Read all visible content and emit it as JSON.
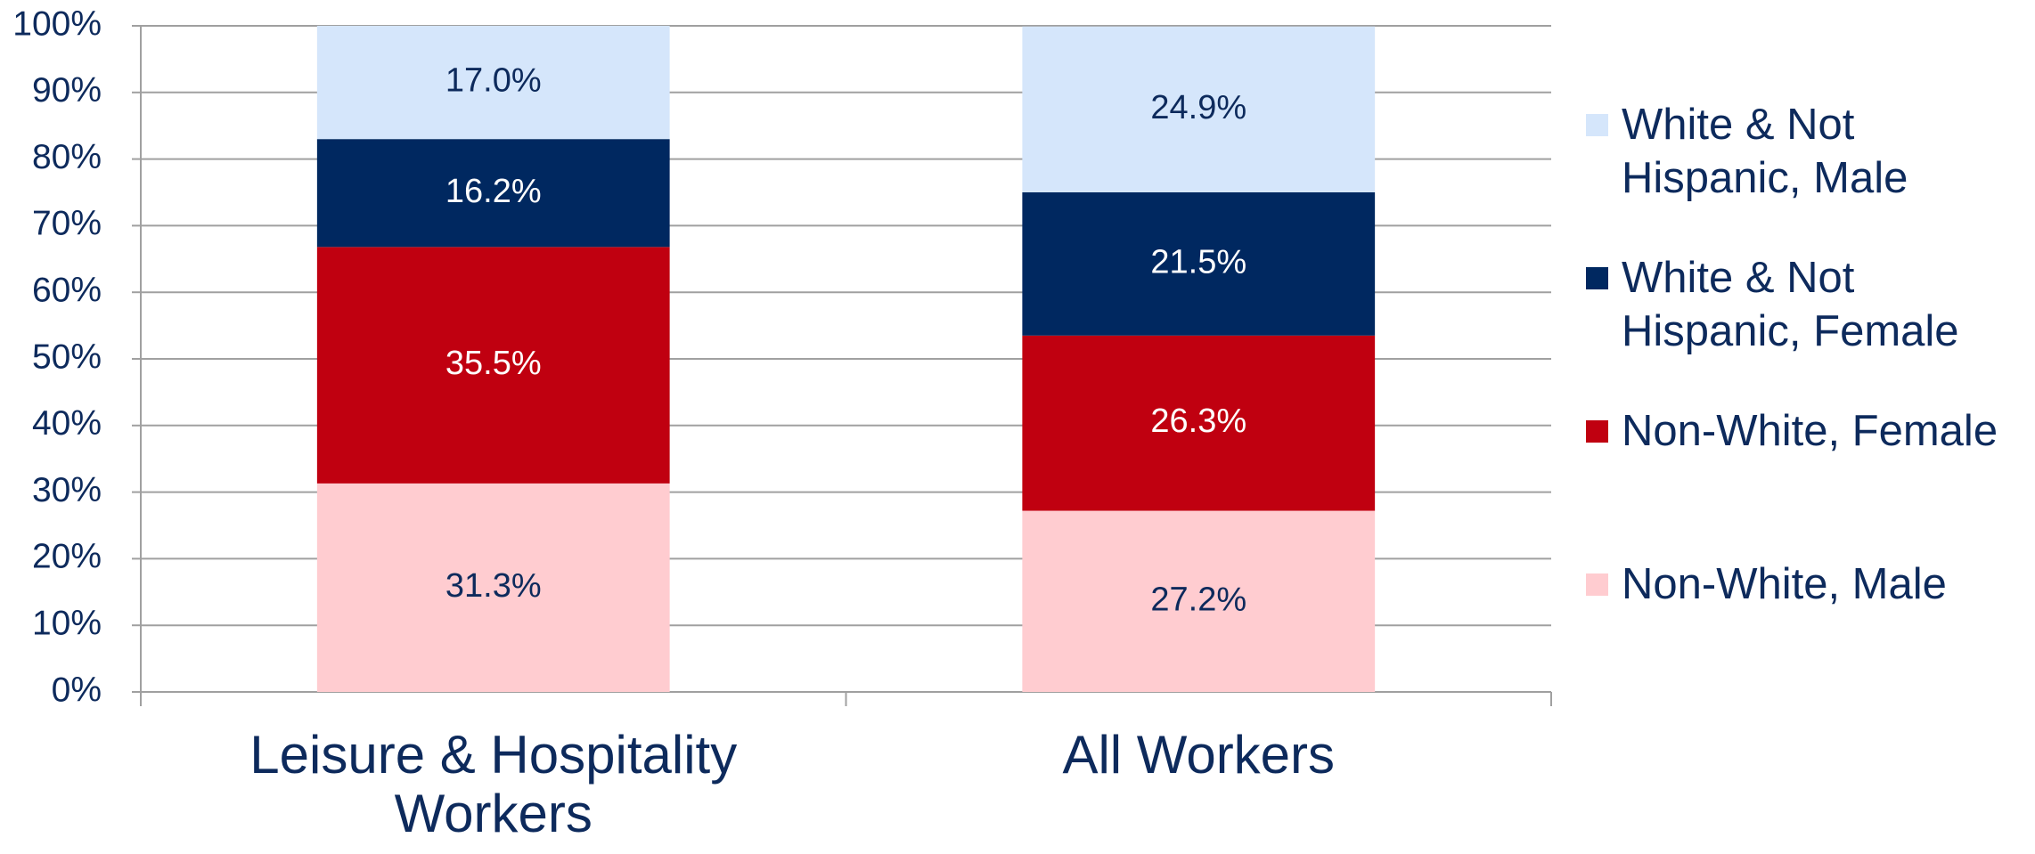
{
  "chart_data": {
    "type": "stacked_bar",
    "categories": [
      "Leisure & Hospitality Workers",
      "All Workers"
    ],
    "series": [
      {
        "name": "Non-White, Male",
        "color": "#ffccd0",
        "values": [
          31.3,
          27.2
        ],
        "value_labels": [
          "31.3%",
          "27.2%"
        ]
      },
      {
        "name": "Non-White, Female",
        "color": "#c00010",
        "values": [
          35.5,
          26.3
        ],
        "value_labels": [
          "35.5%",
          "26.3%"
        ]
      },
      {
        "name": "White & Not Hispanic, Female",
        "color": "#002860",
        "values": [
          16.2,
          21.5
        ],
        "value_labels": [
          "16.2%",
          "21.5%"
        ]
      },
      {
        "name": "White & Not Hispanic, Male",
        "color": "#d5e6fb",
        "values": [
          17.0,
          24.9
        ],
        "value_labels": [
          "17.0%",
          "24.9%"
        ]
      }
    ],
    "ylim": [
      0,
      100
    ],
    "yticks": [
      {
        "value": 0,
        "label": "0%"
      },
      {
        "value": 10,
        "label": "10%"
      },
      {
        "value": 20,
        "label": "20%"
      },
      {
        "value": 30,
        "label": "30%"
      },
      {
        "value": 40,
        "label": "40%"
      },
      {
        "value": 50,
        "label": "50%"
      },
      {
        "value": 60,
        "label": "60%"
      },
      {
        "value": 70,
        "label": "70%"
      },
      {
        "value": 80,
        "label": "80%"
      },
      {
        "value": 90,
        "label": "90%"
      },
      {
        "value": 100,
        "label": "100%"
      }
    ],
    "grid": true,
    "legend": "right"
  }
}
